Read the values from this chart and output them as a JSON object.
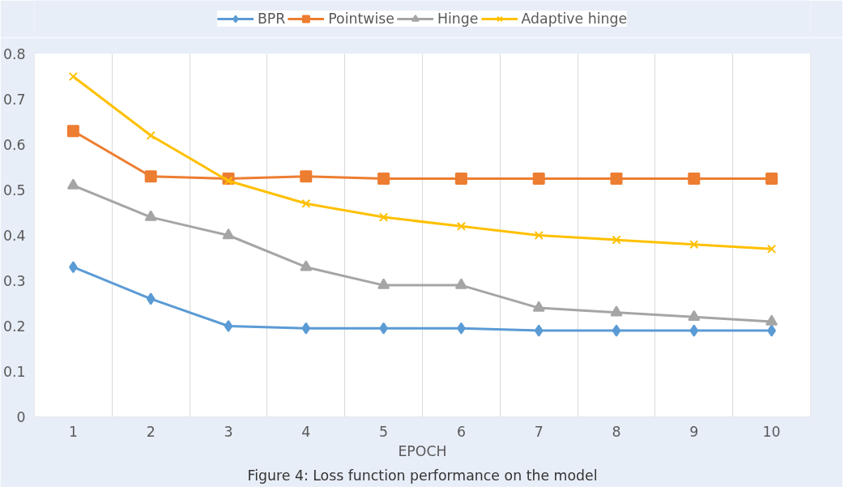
{
  "chart_data": {
    "type": "line",
    "xlabel": "EPOCH",
    "categories": [
      "1",
      "2",
      "3",
      "4",
      "5",
      "6",
      "7",
      "8",
      "9",
      "10"
    ],
    "series": [
      {
        "name": "BPR",
        "color": "#5b9bd5",
        "marker": "diamond",
        "values": [
          0.33,
          0.26,
          0.2,
          0.195,
          0.195,
          0.195,
          0.19,
          0.19,
          0.19,
          0.19
        ]
      },
      {
        "name": "Pointwise",
        "color": "#ed7d31",
        "marker": "square",
        "values": [
          0.63,
          0.53,
          0.525,
          0.53,
          0.525,
          0.525,
          0.525,
          0.525,
          0.525,
          0.525
        ]
      },
      {
        "name": "Hinge",
        "color": "#a5a5a5",
        "marker": "triangle",
        "values": [
          0.51,
          0.44,
          0.4,
          0.33,
          0.29,
          0.29,
          0.24,
          0.23,
          0.22,
          0.21
        ]
      },
      {
        "name": "Adaptive hinge",
        "color": "#ffc000",
        "marker": "cross",
        "values": [
          0.75,
          0.62,
          0.52,
          0.47,
          0.44,
          0.42,
          0.4,
          0.39,
          0.38,
          0.37
        ]
      }
    ],
    "ylim": [
      0,
      0.8
    ],
    "yticks": [
      0,
      0.1,
      0.2,
      0.3,
      0.4,
      0.5,
      0.6,
      0.7,
      0.8
    ],
    "grid": "x",
    "legend": "top",
    "line_style": "solid",
    "annotations": [
      "Figure 4: Loss function performance on the model"
    ]
  }
}
